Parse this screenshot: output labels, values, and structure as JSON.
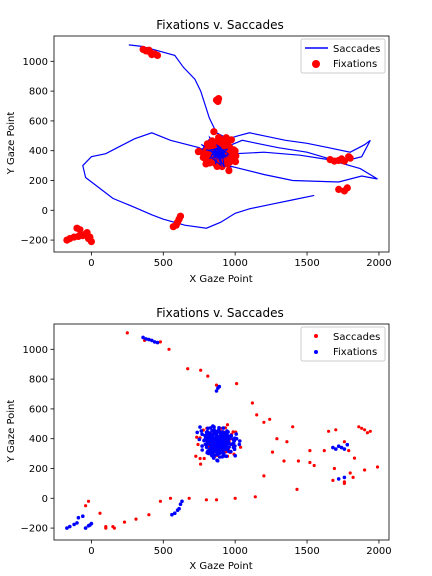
{
  "colors": {
    "saccade_line": "#0000ff",
    "fixation": "#ff0000",
    "saccade_point": "#ff0000",
    "fixation_point": "#0000ff"
  },
  "chart_data": [
    {
      "type": "line",
      "title": "Fixations v. Saccades",
      "xlabel": "X Gaze Point",
      "ylabel": "Y Gaze Point",
      "xlim": [
        -260,
        2070
      ],
      "ylim": [
        -280,
        1170
      ],
      "xticks": [
        0,
        500,
        1000,
        1500,
        2000
      ],
      "yticks": [
        -200,
        0,
        200,
        400,
        600,
        800,
        1000
      ],
      "legend": {
        "position": "top-right",
        "entries": [
          "Saccades",
          "Fixations"
        ]
      },
      "series": [
        {
          "name": "Saccades",
          "kind": "line",
          "x": [
            260,
            350,
            430,
            580,
            640,
            720,
            760,
            820,
            870,
            950,
            1020,
            1100,
            1200,
            1350,
            1500,
            1650,
            1800,
            1900,
            1940,
            1880,
            1760,
            1640,
            1500,
            1300,
            1150,
            1050,
            950,
            900,
            1000,
            1200,
            1450,
            1650,
            1760,
            1870,
            1990,
            1880,
            1720,
            1400,
            1200,
            950,
            750,
            550,
            420,
            300,
            180,
            100,
            0,
            -60,
            -40,
            150,
            300,
            420,
            500,
            650,
            800,
            900,
            1000,
            1100,
            1250,
            1400,
            1550
          ],
          "y": [
            1110,
            1100,
            1080,
            1040,
            960,
            880,
            800,
            620,
            520,
            480,
            500,
            520,
            500,
            470,
            450,
            420,
            390,
            440,
            470,
            360,
            330,
            350,
            390,
            420,
            450,
            470,
            430,
            400,
            380,
            390,
            370,
            340,
            310,
            280,
            210,
            230,
            190,
            200,
            240,
            300,
            420,
            470,
            520,
            480,
            420,
            380,
            360,
            300,
            220,
            80,
            20,
            -30,
            -60,
            -100,
            -120,
            -80,
            -20,
            10,
            40,
            70,
            100
          ]
        },
        {
          "name": "Fixations",
          "kind": "scatter",
          "clusters": [
            {
              "x": [
                -170,
                -150,
                -120,
                -90,
                -60,
                -40,
                -20,
                0,
                -10,
                -30,
                -80,
                -100
              ],
              "y": [
                -200,
                -190,
                -180,
                -175,
                -170,
                -160,
                -190,
                -210,
                -180,
                -150,
                -130,
                -120
              ]
            },
            {
              "x": [
                360,
                380,
                410,
                440,
                460,
                400,
                420
              ],
              "y": [
                1080,
                1070,
                1060,
                1050,
                1040,
                1075,
                1045
              ]
            },
            {
              "x": [
                570,
                590,
                600,
                610,
                620
              ],
              "y": [
                -110,
                -100,
                -80,
                -60,
                -40
              ]
            },
            {
              "x": [
                870,
                880,
                885
              ],
              "y": [
                740,
                730,
                750
              ]
            },
            {
              "x": [
                1660,
                1690,
                1720,
                1740,
                1760,
                1790,
                1800,
                1720,
                1760,
                1780
              ],
              "y": [
                340,
                330,
                335,
                345,
                330,
                360,
                350,
                140,
                130,
                150
              ]
            }
          ],
          "main_cluster": {
            "x_range": [
              650,
              1180
            ],
            "y_range": [
              170,
              620
            ],
            "center": [
              880,
              380
            ]
          }
        }
      ]
    },
    {
      "type": "scatter",
      "title": "Fixations v. Saccades",
      "xlabel": "X Gaze Point",
      "ylabel": "Y Gaze Point",
      "xlim": [
        -260,
        2070
      ],
      "ylim": [
        -280,
        1170
      ],
      "xticks": [
        0,
        500,
        1000,
        1500,
        2000
      ],
      "yticks": [
        -200,
        0,
        200,
        400,
        600,
        800,
        1000
      ],
      "legend": {
        "position": "top-right",
        "entries": [
          "Saccades",
          "Fixations"
        ]
      },
      "series": [
        {
          "name": "Saccades",
          "x": [
            250,
            370,
            480,
            540,
            670,
            760,
            810,
            870,
            1010,
            1120,
            1200,
            1240,
            1290,
            1360,
            1400,
            1440,
            1520,
            1650,
            1700,
            1760,
            1790,
            1830,
            1860,
            1880,
            1900,
            1920,
            1940,
            1990,
            1900,
            1800,
            1760,
            1690,
            1620,
            1550,
            1430,
            1340,
            1200,
            1140,
            1000,
            870,
            800,
            680,
            550,
            480,
            400,
            310,
            230,
            150,
            100,
            -40,
            -20,
            60,
            100,
            160,
            1150,
            1260,
            1520,
            1820,
            1760,
            1680
          ],
          "y": [
            1110,
            1060,
            1050,
            1000,
            870,
            860,
            820,
            760,
            770,
            640,
            510,
            530,
            400,
            380,
            480,
            250,
            240,
            450,
            460,
            380,
            320,
            270,
            480,
            470,
            460,
            440,
            450,
            210,
            190,
            170,
            110,
            200,
            320,
            220,
            60,
            250,
            150,
            10,
            0,
            -10,
            -10,
            0,
            0,
            -20,
            -110,
            -140,
            -160,
            -190,
            -200,
            -50,
            -20,
            -100,
            -190,
            -200,
            560,
            310,
            320,
            140,
            100,
            120
          ]
        },
        {
          "name": "Fixations",
          "clusters": [
            {
              "x": [
                -170,
                -150,
                -120,
                -100,
                -90,
                -60,
                -40,
                -20,
                0,
                -10
              ],
              "y": [
                -200,
                -190,
                -175,
                -165,
                -130,
                -120,
                -200,
                -185,
                -170,
                -180
              ]
            },
            {
              "x": [
                360,
                380,
                400,
                420,
                440,
                460
              ],
              "y": [
                1080,
                1070,
                1065,
                1060,
                1050,
                1045
              ]
            },
            {
              "x": [
                560,
                580,
                600,
                610,
                620,
                630
              ],
              "y": [
                -110,
                -100,
                -80,
                -70,
                -40,
                -20
              ]
            },
            {
              "x": [
                870,
                880,
                890
              ],
              "y": [
                720,
                740,
                750
              ]
            },
            {
              "x": [
                1680,
                1700,
                1720,
                1740,
                1760,
                1780,
                1720,
                1760
              ],
              "y": [
                340,
                330,
                350,
                340,
                330,
                360,
                130,
                140
              ]
            }
          ],
          "main_cluster": {
            "x_range": [
              650,
              1180
            ],
            "y_range": [
              170,
              620
            ],
            "center": [
              880,
              380
            ]
          }
        }
      ]
    }
  ]
}
